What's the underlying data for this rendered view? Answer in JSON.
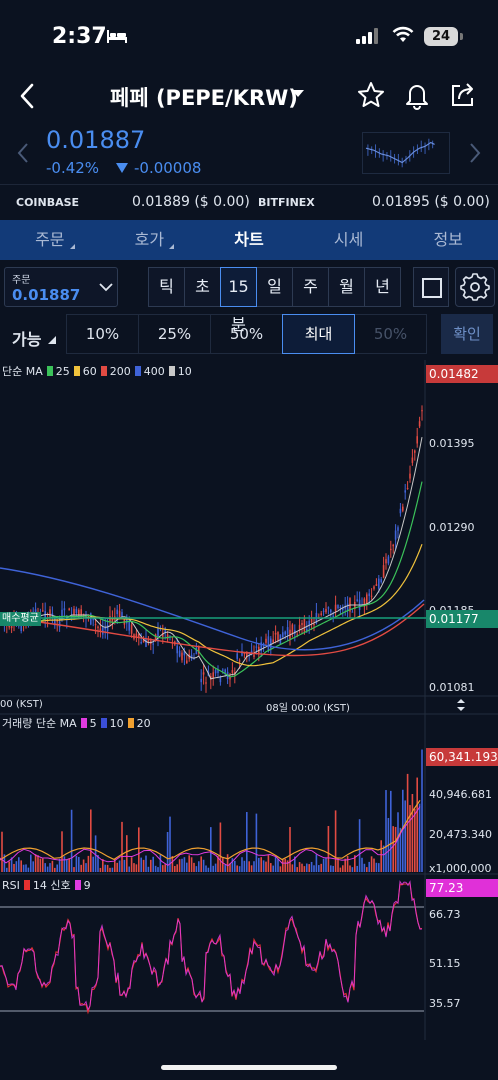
{
  "status_bar": {
    "time": "2:37",
    "battery": "24"
  },
  "header": {
    "title": "페페 (PEPE/KRW)"
  },
  "price": {
    "current": "0.01887",
    "change_pct": "-0.42%",
    "change_val": "-0.00008"
  },
  "exchanges": [
    {
      "name": "COINBASE",
      "value": "0.01889 ($ 0.00)"
    },
    {
      "name": "BITFINEX",
      "value": "0.01895 ($ 0.00)"
    }
  ],
  "tabs": [
    {
      "label": "주문",
      "sub": true
    },
    {
      "label": "호가",
      "sub": true
    },
    {
      "label": "차트",
      "active": true
    },
    {
      "label": "시세"
    },
    {
      "label": "정보"
    }
  ],
  "order_select": {
    "label": "주문",
    "value": "0.01887"
  },
  "timeframes": [
    {
      "label": "틱"
    },
    {
      "label": "초"
    },
    {
      "label": "15분",
      "selected": true
    },
    {
      "label": "일"
    },
    {
      "label": "주"
    },
    {
      "label": "월"
    },
    {
      "label": "년"
    }
  ],
  "avail_label": "가능",
  "percent_options": [
    {
      "label": "10%"
    },
    {
      "label": "25%"
    },
    {
      "label": "50%"
    },
    {
      "label": "최대",
      "selected": true
    },
    {
      "label": "50%",
      "dim": true
    }
  ],
  "confirm_label": "확인",
  "price_panel": {
    "legend_prefix": "단순 MA",
    "ma_items": [
      {
        "label": "25",
        "color": "#3bc25a"
      },
      {
        "label": "60",
        "color": "#f0c23c"
      },
      {
        "label": "200",
        "color": "#e24b43"
      },
      {
        "label": "400",
        "color": "#3f63d8"
      },
      {
        "label": "10",
        "color": "#c9c9c9"
      }
    ],
    "axis_labels": [
      "0.01482",
      "0.01395",
      "0.01290",
      "0.01185",
      "0.01081"
    ],
    "current_badge": "0.01177",
    "top_badge": "0.01482",
    "avg_label": "매수평균",
    "time_labels": [
      "00 (KST)",
      "08일 00:00 (KST)"
    ]
  },
  "volume_panel": {
    "legend_prefix": "거래량 단순 MA",
    "ma_items": [
      {
        "label": "5",
        "color": "#e03be0"
      },
      {
        "label": "10",
        "color": "#3b4fd8"
      },
      {
        "label": "20",
        "color": "#f0a030"
      }
    ],
    "axis_labels": [
      "60,341.193",
      "40,946.681",
      "20,473.340",
      "x1,000,000"
    ]
  },
  "rsi_panel": {
    "legend_prefix": "RSI",
    "items": [
      {
        "label": "14 신호",
        "color": "#e53030"
      },
      {
        "label": "9",
        "color": "#e03be0"
      }
    ],
    "axis_labels": [
      "77.23",
      "66.73",
      "51.15",
      "35.57"
    ]
  },
  "colors": {
    "accent": "#4a8df0",
    "tab_bg": "#123a78",
    "bg": "#0b1220",
    "up": "#e24b43",
    "down": "#3f63d8"
  }
}
